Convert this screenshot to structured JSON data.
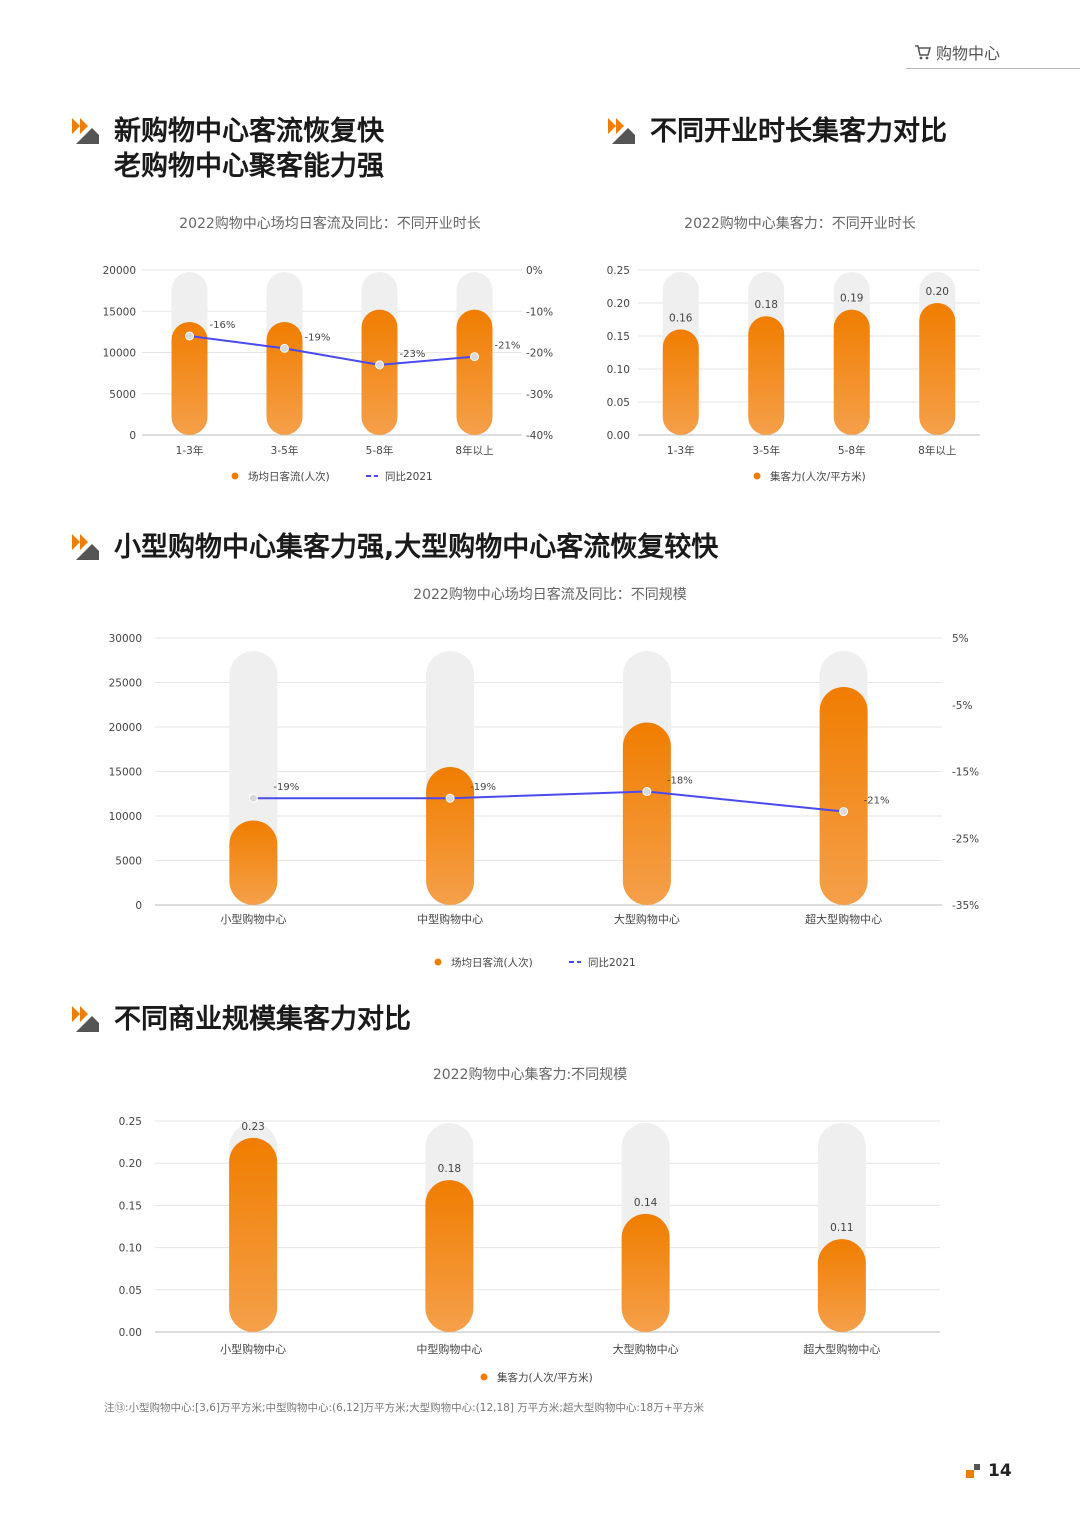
{
  "header": {
    "label": "购物中心"
  },
  "sections": [
    {
      "title_lines": [
        "新购物中心客流恢复快",
        "老购物中心聚客能力强"
      ]
    },
    {
      "title_lines": [
        "不同开业时长集客力对比"
      ]
    },
    {
      "title_lines": [
        "小型购物中心集客力强,大型购物中心客流恢复较快"
      ]
    },
    {
      "title_lines": [
        "不同商业规模集客力对比"
      ]
    }
  ],
  "chart_data": [
    {
      "type": "bar",
      "title": "2022购物中心场均日客流及同比：不同开业时长",
      "categories": [
        "1-3年",
        "3-5年",
        "5-8年",
        "8年以上"
      ],
      "series": [
        {
          "name": "场均日客流(人次)",
          "kind": "bar",
          "axis": "left",
          "values": [
            13700,
            13700,
            15200,
            15200
          ]
        },
        {
          "name": "同比2021",
          "kind": "line",
          "axis": "right",
          "values": [
            -16,
            -19,
            -23,
            -21
          ],
          "labels": [
            "-16%",
            "-19%",
            "-23%",
            "-21%"
          ]
        }
      ],
      "ylim": [
        0,
        20000
      ],
      "y_ticks": [
        "0",
        "5000",
        "10000",
        "15000",
        "20000"
      ],
      "y2lim": [
        -40,
        0
      ],
      "y2_ticks": [
        "-40%",
        "-30%",
        "-20%",
        "-10%",
        "0%"
      ],
      "legend_position": "bottom",
      "colors": {
        "bar": "#f07d00",
        "line": "#4a4af0"
      }
    },
    {
      "type": "bar",
      "title": "2022购物中心集客力：不同开业时长",
      "categories": [
        "1-3年",
        "3-5年",
        "5-8年",
        "8年以上"
      ],
      "series": [
        {
          "name": "集客力(人次/平方米)",
          "kind": "bar",
          "axis": "left",
          "values": [
            0.16,
            0.18,
            0.19,
            0.2
          ],
          "labels": [
            "0.16",
            "0.18",
            "0.19",
            "0.20"
          ]
        }
      ],
      "ylim": [
        0,
        0.25
      ],
      "y_ticks": [
        "0.00",
        "0.05",
        "0.10",
        "0.15",
        "0.20",
        "0.25"
      ],
      "legend_position": "bottom",
      "colors": {
        "bar": "#f07d00"
      }
    },
    {
      "type": "bar",
      "title": "2022购物中心场均日客流及同比：不同规模",
      "categories": [
        "小型购物中心",
        "中型购物中心",
        "大型购物中心",
        "超大型购物中心"
      ],
      "series": [
        {
          "name": "场均日客流(人次)",
          "kind": "bar",
          "axis": "left",
          "values": [
            9500,
            15500,
            20500,
            24500
          ]
        },
        {
          "name": "同比2021",
          "kind": "line",
          "axis": "right",
          "values": [
            -19,
            -19,
            -18,
            -21
          ],
          "labels": [
            "-19%",
            "-19%",
            "-18%",
            "-21%"
          ]
        }
      ],
      "ylim": [
        0,
        30000
      ],
      "y_ticks": [
        "0",
        "5000",
        "10000",
        "15000",
        "20000",
        "25000",
        "30000"
      ],
      "y2lim": [
        -35,
        5
      ],
      "y2_ticks": [
        "-35%",
        "-25%",
        "-15%",
        "-5%",
        "5%"
      ],
      "legend_position": "bottom",
      "colors": {
        "bar": "#f07d00",
        "line": "#4a4af0"
      }
    },
    {
      "type": "bar",
      "title": "2022购物中心集客力:不同规模",
      "categories": [
        "小型购物中心",
        "中型购物中心",
        "大型购物中心",
        "超大型购物中心"
      ],
      "series": [
        {
          "name": "集客力(人次/平方米)",
          "kind": "bar",
          "axis": "left",
          "values": [
            0.23,
            0.18,
            0.14,
            0.11
          ],
          "labels": [
            "0.23",
            "0.18",
            "0.14",
            "0.11"
          ]
        }
      ],
      "ylim": [
        0,
        0.25
      ],
      "y_ticks": [
        "0.00",
        "0.05",
        "0.10",
        "0.15",
        "0.20",
        "0.25"
      ],
      "legend_position": "bottom",
      "colors": {
        "bar": "#f07d00"
      }
    }
  ],
  "note": "注⑬:小型购物中心:[3,6]万平方米;中型购物中心:(6,12]万平方米;大型购物中心:(12,18] 万平方米;超大型购物中心:18万+平方米",
  "page_number": "14"
}
